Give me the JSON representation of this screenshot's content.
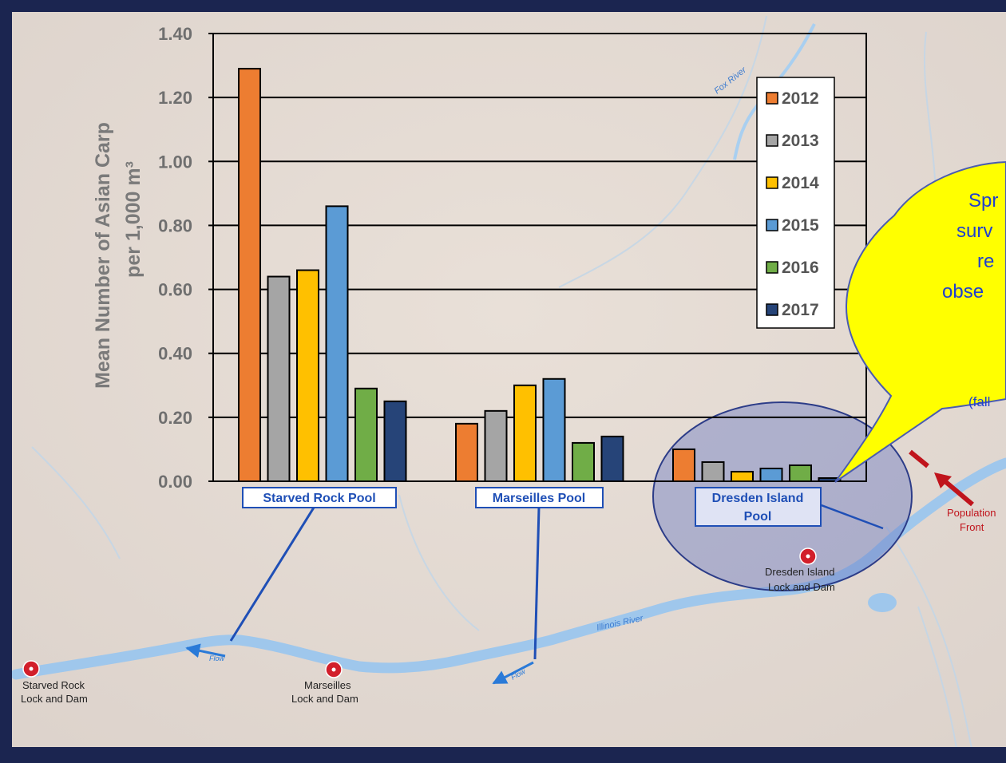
{
  "chart_data": {
    "type": "bar",
    "ylabel_line1": "Mean  Number of Asian Carp",
    "ylabel_line2": "per 1,000 m³",
    "ylim": [
      0,
      1.4
    ],
    "yticks": [
      "0.00",
      "0.20",
      "0.40",
      "0.60",
      "0.80",
      "1.00",
      "1.20",
      "1.40"
    ],
    "grid": true,
    "legend_position": "top-right",
    "categories": [
      "Starved Rock Pool",
      "Marseilles Pool",
      "Dresden Island Pool"
    ],
    "series": [
      {
        "name": "2012",
        "color": "#ed7d31",
        "values": [
          1.29,
          0.18,
          0.1
        ]
      },
      {
        "name": "2013",
        "color": "#a5a5a5",
        "values": [
          0.64,
          0.22,
          0.06
        ]
      },
      {
        "name": "2014",
        "color": "#ffc000",
        "values": [
          0.66,
          0.3,
          0.03
        ]
      },
      {
        "name": "2015",
        "color": "#5b9bd5",
        "values": [
          0.86,
          0.32,
          0.04
        ]
      },
      {
        "name": "2016",
        "color": "#70ad47",
        "values": [
          0.29,
          0.12,
          0.05
        ]
      },
      {
        "name": "2017",
        "color": "#264478",
        "values": [
          0.25,
          0.14,
          0.01
        ]
      }
    ]
  },
  "map": {
    "river_labels": [
      "Fox River",
      "Illinois River"
    ],
    "flow_label": "Flow",
    "locks": [
      {
        "line1": "Starved Rock",
        "line2": "Lock and Dam"
      },
      {
        "line1": "Marseilles",
        "line2": "Lock and Dam"
      },
      {
        "line1": "Dresden Island",
        "line2": "Lock and Dam"
      }
    ],
    "population_front": {
      "line1": "Population",
      "line2": "Front"
    }
  },
  "callout": {
    "line1": "Spr",
    "line2": "surv",
    "line3": "re",
    "line4": "obse",
    "line5": "(fall"
  },
  "colors": {
    "frame": "#1b2550",
    "map_background": "#e6dcd4",
    "river": "#a9cff0",
    "connector": "#1f4fb6",
    "callout_fill": "#ffff00",
    "callout_text": "#1f3fd0",
    "highlight": "#6d7cc4"
  }
}
